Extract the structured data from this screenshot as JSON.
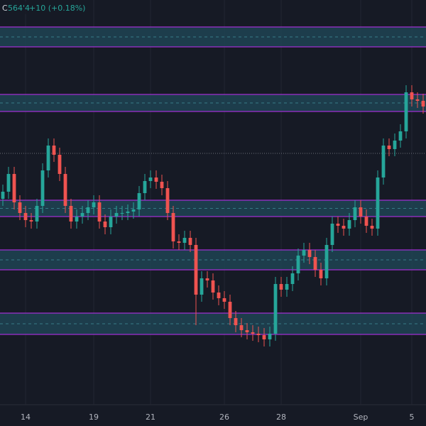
{
  "chart_data": {
    "type": "candlestick",
    "legend": {
      "label": "C",
      "close": "564'4",
      "change": "+10 (+0.18%)"
    },
    "categories": [
      null,
      null,
      null,
      null,
      "14",
      null,
      null,
      null,
      null,
      null,
      null,
      null,
      null,
      null,
      null,
      null,
      "19",
      null,
      null,
      null,
      null,
      null,
      null,
      null,
      null,
      null,
      "21",
      null,
      null,
      null,
      null,
      null,
      null,
      null,
      null,
      null,
      null,
      null,
      null,
      "26",
      null,
      null,
      null,
      null,
      null,
      null,
      null,
      null,
      null,
      "28",
      null,
      null,
      null,
      null,
      null,
      null,
      null,
      null,
      null,
      null,
      null,
      null,
      null,
      "Sep",
      null,
      null,
      null,
      null,
      null,
      null,
      null,
      null,
      "5",
      null,
      null
    ],
    "open": [
      558,
      558.5,
      559.75,
      557.75,
      557,
      556.5,
      556.4,
      557.5,
      560,
      561.75,
      561.1,
      559.75,
      557.5,
      556.4,
      556.75,
      557,
      557.4,
      557.75,
      556.4,
      556,
      556.75,
      557,
      557,
      557.1,
      557.25,
      558.4,
      559.25,
      559.5,
      559.2,
      558.75,
      557,
      555,
      554.9,
      555.25,
      554.75,
      551.25,
      552.4,
      552.25,
      551.4,
      551,
      550.75,
      549.6,
      549.1,
      548.75,
      548.6,
      548.5,
      548.4,
      548.1,
      548.5,
      552,
      551.6,
      552,
      552.75,
      554,
      554.4,
      553.9,
      553,
      552.4,
      554.75,
      556.25,
      556.1,
      555.9,
      556.5,
      557.4,
      556.75,
      556.1,
      555.9,
      559.5,
      561.75,
      561.5,
      562.1,
      562.75,
      565.5,
      565,
      564.9
    ],
    "high": [
      559,
      560.25,
      560.25,
      558.25,
      557.5,
      557,
      558,
      560.5,
      562.25,
      562.25,
      561.6,
      560.25,
      558,
      557.25,
      557.5,
      557.9,
      558.25,
      558.25,
      556.9,
      557.25,
      557.5,
      557.5,
      557.6,
      557.75,
      558.9,
      559.75,
      560,
      560,
      559.7,
      559.25,
      557.5,
      555.5,
      555.75,
      555.75,
      555.25,
      552.9,
      552.9,
      552.75,
      551.9,
      551.5,
      551.25,
      550.1,
      549.6,
      549.25,
      549.1,
      549,
      548.9,
      549,
      552.5,
      552.5,
      552.5,
      553.25,
      554.5,
      554.9,
      554.9,
      554.4,
      553.5,
      555.25,
      556.75,
      556.75,
      556.6,
      557,
      557.9,
      557.9,
      557.25,
      556.6,
      560,
      562.25,
      562.25,
      562.6,
      563.25,
      566,
      566,
      565.5,
      565.4
    ],
    "low": [
      557.5,
      558,
      557.25,
      556.5,
      556,
      555.9,
      555.9,
      557,
      559.5,
      560.6,
      559.25,
      557,
      555.9,
      555.9,
      556.25,
      556.5,
      556.9,
      555.9,
      555.5,
      555.5,
      556.25,
      556.5,
      556.5,
      556.6,
      556.75,
      557.9,
      558.75,
      558.7,
      558.25,
      556.5,
      554.5,
      554.4,
      554.4,
      554.25,
      549.1,
      550.75,
      551.75,
      550.9,
      550.5,
      550.25,
      549.1,
      548.6,
      548.25,
      548.1,
      548,
      547.9,
      547.6,
      547.6,
      548,
      551.1,
      551.1,
      551.5,
      552.25,
      553.5,
      553.4,
      552.5,
      551.9,
      551.9,
      554.25,
      555.6,
      555.4,
      555.4,
      556,
      556.25,
      555.6,
      555.4,
      555.4,
      559,
      561,
      561,
      561.6,
      562.25,
      564.5,
      564.4,
      564
    ],
    "close": [
      558.5,
      559.75,
      557.75,
      557,
      556.5,
      556.4,
      557.5,
      560,
      561.75,
      561.1,
      559.75,
      557.5,
      556.4,
      556.75,
      557,
      557.4,
      557.75,
      556.4,
      556,
      556.75,
      557,
      557,
      557.1,
      557.25,
      558.4,
      559.25,
      559.5,
      559.2,
      558.75,
      557,
      555,
      554.9,
      555.25,
      554.75,
      551.25,
      552.4,
      552.25,
      551.4,
      551,
      550.75,
      549.6,
      549.1,
      548.75,
      548.6,
      548.5,
      548.4,
      548.1,
      548.5,
      552,
      551.6,
      552,
      552.75,
      554,
      554.4,
      553.9,
      553,
      552.4,
      554.75,
      556.25,
      556.1,
      555.9,
      556.5,
      557.4,
      556.75,
      556.1,
      555.9,
      559.5,
      561.75,
      561.5,
      562.1,
      562.75,
      565.5,
      565,
      564.9,
      564.5
    ],
    "up_color": "#26a69a",
    "down_color": "#ef5350",
    "zones": [
      {
        "low": 568.7,
        "high": 570.1
      },
      {
        "low": 564.15,
        "high": 565.35
      },
      {
        "low": 556.75,
        "high": 557.9
      },
      {
        "low": 553,
        "high": 554.4
      },
      {
        "low": 548.45,
        "high": 549.95
      }
    ],
    "zone_color": "#1f4454",
    "zone_border": "#a12fd1",
    "ref_line": 561.2,
    "ylim": [
      543.5,
      572
    ]
  }
}
